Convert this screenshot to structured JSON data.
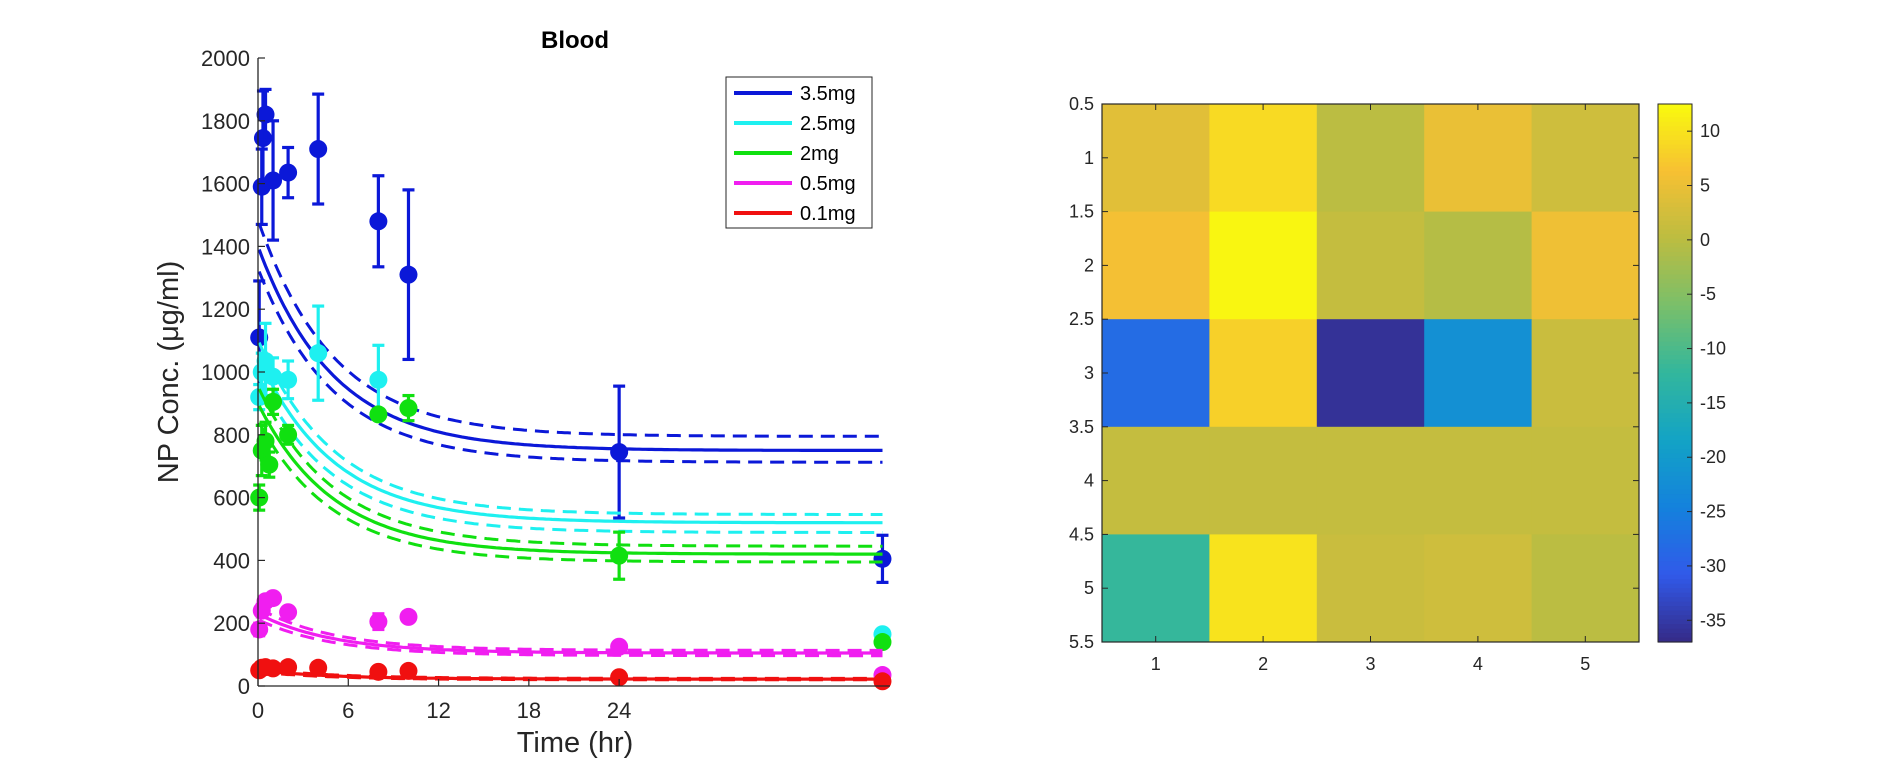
{
  "chart_data": [
    {
      "type": "line",
      "title": "Blood",
      "xlabel": "Time (hr)",
      "ylabel": "NP Conc. (μg/ml)",
      "xlim": [
        0,
        42
      ],
      "ylim": [
        0,
        2000
      ],
      "xticks": [
        0,
        6,
        12,
        18,
        24
      ],
      "yticks": [
        0,
        200,
        400,
        600,
        800,
        1000,
        1200,
        1400,
        1600,
        1800,
        2000
      ],
      "grid": false,
      "legend_position": "top-right",
      "series": [
        {
          "name": "3.5mg",
          "color": "#0b18d8",
          "model": {
            "p1": 1400,
            "p2": 750,
            "k": 0.2,
            "lo": 0.95,
            "hi": 1.06
          },
          "observed": [
            {
              "x": 0.08,
              "y": 1110,
              "err": 180
            },
            {
              "x": 0.25,
              "y": 1590,
              "err": 120
            },
            {
              "x": 0.33,
              "y": 1745,
              "err": 150
            },
            {
              "x": 0.5,
              "y": 1820,
              "err": 80
            },
            {
              "x": 1,
              "y": 1610,
              "err": 190
            },
            {
              "x": 2,
              "y": 1635,
              "err": 80
            },
            {
              "x": 4,
              "y": 1710,
              "err": 175
            },
            {
              "x": 8,
              "y": 1480,
              "err": 145
            },
            {
              "x": 10,
              "y": 1310,
              "err": 270
            },
            {
              "x": 24,
              "y": 745,
              "err": 210
            },
            {
              "x": 41.5,
              "y": 405,
              "err": 75
            }
          ]
        },
        {
          "name": "2.5mg",
          "color": "#1ef0f0",
          "model": {
            "p1": 1050,
            "p2": 520,
            "k": 0.2,
            "lo": 0.94,
            "hi": 1.05
          },
          "observed": [
            {
              "x": 0.08,
              "y": 920,
              "err": 40
            },
            {
              "x": 0.25,
              "y": 1000,
              "err": 60
            },
            {
              "x": 0.5,
              "y": 1035,
              "err": 120
            },
            {
              "x": 1,
              "y": 985,
              "err": 60
            },
            {
              "x": 2,
              "y": 975,
              "err": 60
            },
            {
              "x": 4,
              "y": 1060,
              "err": 150
            },
            {
              "x": 8,
              "y": 975,
              "err": 110
            },
            {
              "x": 41.5,
              "y": 165,
              "err": 0
            }
          ]
        },
        {
          "name": "2mg",
          "color": "#10e010",
          "model": {
            "p1": 900,
            "p2": 420,
            "k": 0.2,
            "lo": 0.94,
            "hi": 1.06
          },
          "observed": [
            {
              "x": 0.08,
              "y": 600,
              "err": 40
            },
            {
              "x": 0.25,
              "y": 750,
              "err": 80
            },
            {
              "x": 0.5,
              "y": 780,
              "err": 60
            },
            {
              "x": 0.75,
              "y": 705,
              "err": 40
            },
            {
              "x": 1,
              "y": 905,
              "err": 40
            },
            {
              "x": 2,
              "y": 800,
              "err": 30
            },
            {
              "x": 8,
              "y": 865,
              "err": 0
            },
            {
              "x": 10,
              "y": 885,
              "err": 40
            },
            {
              "x": 24,
              "y": 415,
              "err": 75
            },
            {
              "x": 41.5,
              "y": 140,
              "err": 0
            }
          ]
        },
        {
          "name": "0.5mg",
          "color": "#f01ef0",
          "model": {
            "p1": 230,
            "p2": 105,
            "k": 0.2,
            "lo": 0.92,
            "hi": 1.08
          },
          "observed": [
            {
              "x": 0.08,
              "y": 180,
              "err": 20
            },
            {
              "x": 0.25,
              "y": 240,
              "err": 20
            },
            {
              "x": 0.5,
              "y": 270,
              "err": 15
            },
            {
              "x": 1,
              "y": 280,
              "err": 15
            },
            {
              "x": 2,
              "y": 235,
              "err": 15
            },
            {
              "x": 8,
              "y": 205,
              "err": 25
            },
            {
              "x": 10,
              "y": 220,
              "err": 15
            },
            {
              "x": 24,
              "y": 125,
              "err": 0
            },
            {
              "x": 41.5,
              "y": 35,
              "err": 0
            }
          ]
        },
        {
          "name": "0.1mg",
          "color": "#f01010",
          "model": {
            "p1": 50,
            "p2": 22,
            "k": 0.2,
            "lo": 0.9,
            "hi": 1.1
          },
          "observed": [
            {
              "x": 0.08,
              "y": 50,
              "err": 0
            },
            {
              "x": 0.25,
              "y": 58,
              "err": 0
            },
            {
              "x": 0.5,
              "y": 60,
              "err": 0
            },
            {
              "x": 1,
              "y": 56,
              "err": 0
            },
            {
              "x": 2,
              "y": 60,
              "err": 0
            },
            {
              "x": 4,
              "y": 58,
              "err": 0
            },
            {
              "x": 8,
              "y": 45,
              "err": 0
            },
            {
              "x": 10,
              "y": 48,
              "err": 0
            },
            {
              "x": 24,
              "y": 28,
              "err": 0
            },
            {
              "x": 41.5,
              "y": 15,
              "err": 0
            }
          ]
        }
      ]
    },
    {
      "type": "heatmap",
      "xticks": [
        "1",
        "2",
        "3",
        "4",
        "5"
      ],
      "yticks": [
        "0.5",
        "1",
        "1.5",
        "2",
        "2.5",
        "3",
        "3.5",
        "4",
        "4.5",
        "5",
        "5.5"
      ],
      "xlim": [
        0.5,
        5.5
      ],
      "ylim": [
        0.5,
        5.5
      ],
      "colorbar": {
        "ticks": [
          "10",
          "5",
          "0",
          "-5",
          "-10",
          "-15",
          "-20",
          "-25",
          "-30",
          "-35"
        ],
        "range": [
          -37,
          12.5
        ],
        "colormap": "parula"
      },
      "values": [
        [
          4,
          9,
          0,
          5,
          2
        ],
        [
          6,
          12,
          1,
          -0.5,
          5.5
        ],
        [
          -28,
          8,
          -36,
          -22,
          1.5
        ],
        [
          1,
          1,
          1,
          1,
          1
        ],
        [
          -12,
          10,
          1.5,
          2,
          0
        ]
      ]
    }
  ]
}
